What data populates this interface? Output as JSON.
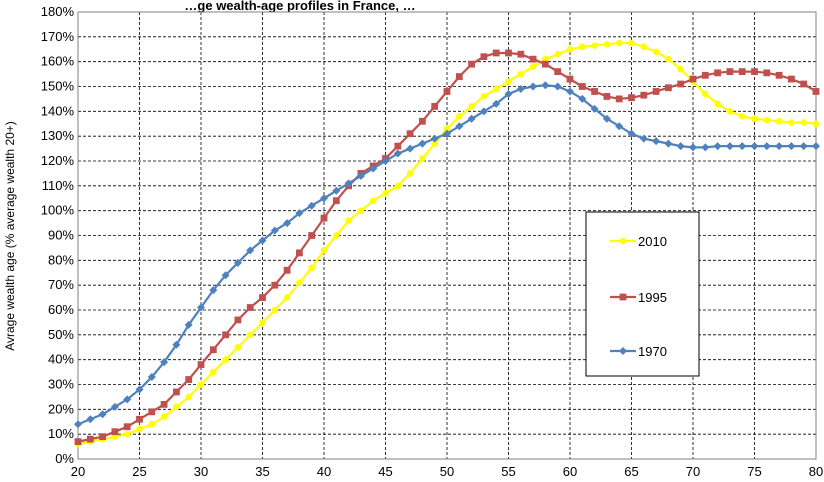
{
  "chart_data": {
    "type": "line",
    "title": "…ge wealth-age profiles in France, …",
    "xlabel": "",
    "ylabel": "Avrage wealth age (% average wealth 20+)",
    "xlim": [
      20,
      80
    ],
    "ylim": [
      0,
      180
    ],
    "x_ticks": [
      "20",
      "25",
      "30",
      "35",
      "40",
      "45",
      "50",
      "55",
      "60",
      "65",
      "70",
      "75",
      "80"
    ],
    "y_ticks": [
      "0%",
      "10%",
      "20%",
      "30%",
      "40%",
      "50%",
      "60%",
      "70%",
      "80%",
      "90%",
      "100%",
      "110%",
      "120%",
      "130%",
      "140%",
      "150%",
      "160%",
      "170%",
      "180%"
    ],
    "grid": true,
    "legend_placement": "right-middle",
    "series": [
      {
        "name": "2010",
        "color": "#ffff00",
        "marker": "circle",
        "x": [
          20,
          21,
          22,
          23,
          24,
          25,
          26,
          27,
          28,
          29,
          30,
          31,
          32,
          33,
          34,
          35,
          36,
          37,
          38,
          39,
          40,
          41,
          42,
          43,
          44,
          45,
          46,
          47,
          48,
          49,
          50,
          51,
          52,
          53,
          54,
          55,
          56,
          57,
          58,
          59,
          60,
          61,
          62,
          63,
          64,
          65,
          66,
          67,
          68,
          69,
          70,
          71,
          72,
          73,
          74,
          75,
          76,
          77,
          78,
          79,
          80
        ],
        "values": [
          6,
          7,
          8,
          9,
          10,
          12,
          14,
          17,
          21,
          25,
          30,
          35,
          40,
          45,
          50,
          55,
          60,
          65,
          71,
          77,
          84,
          90,
          96,
          100,
          104,
          107,
          110,
          115,
          121,
          127,
          133,
          138,
          142,
          146,
          149,
          152,
          155,
          158,
          161,
          163,
          165,
          166,
          166.5,
          167,
          167.5,
          167.5,
          166,
          164,
          161,
          157,
          152,
          147,
          143,
          140,
          138,
          137,
          136.5,
          136,
          135.5,
          135.5,
          135
        ]
      },
      {
        "name": "1995",
        "color": "#c0504d",
        "marker": "square",
        "x": [
          20,
          21,
          22,
          23,
          24,
          25,
          26,
          27,
          28,
          29,
          30,
          31,
          32,
          33,
          34,
          35,
          36,
          37,
          38,
          39,
          40,
          41,
          42,
          43,
          44,
          45,
          46,
          47,
          48,
          49,
          50,
          51,
          52,
          53,
          54,
          55,
          56,
          57,
          58,
          59,
          60,
          61,
          62,
          63,
          64,
          65,
          66,
          67,
          68,
          69,
          70,
          71,
          72,
          73,
          74,
          75,
          76,
          77,
          78,
          79,
          80
        ],
        "values": [
          7,
          8,
          9,
          11,
          13,
          16,
          19,
          22,
          27,
          32,
          38,
          44,
          50,
          56,
          61,
          65,
          70,
          76,
          83,
          90,
          97,
          104,
          110,
          115,
          118,
          121,
          126,
          131,
          136,
          142,
          148,
          154,
          159,
          162,
          163.5,
          163.5,
          163,
          161,
          159,
          156,
          153,
          150,
          148,
          146,
          145,
          145.5,
          146.5,
          148,
          149.5,
          151,
          153,
          154.5,
          155.5,
          156,
          156,
          156,
          155.5,
          154.5,
          153,
          151,
          148
        ]
      },
      {
        "name": "1970",
        "color": "#4f81bd",
        "marker": "diamond",
        "x": [
          20,
          21,
          22,
          23,
          24,
          25,
          26,
          27,
          28,
          29,
          30,
          31,
          32,
          33,
          34,
          35,
          36,
          37,
          38,
          39,
          40,
          41,
          42,
          43,
          44,
          45,
          46,
          47,
          48,
          49,
          50,
          51,
          52,
          53,
          54,
          55,
          56,
          57,
          58,
          59,
          60,
          61,
          62,
          63,
          64,
          65,
          66,
          67,
          68,
          69,
          70,
          71,
          72,
          73,
          74,
          75,
          76,
          77,
          78,
          79,
          80
        ],
        "values": [
          14,
          16,
          18,
          21,
          24,
          28,
          33,
          39,
          46,
          54,
          61,
          68,
          74,
          79,
          84,
          88,
          92,
          95,
          99,
          102,
          105,
          108,
          111,
          114,
          117,
          120,
          123,
          125,
          127,
          129,
          131,
          134,
          137,
          140,
          143,
          147,
          149,
          150,
          150.5,
          150,
          148,
          145,
          141,
          137,
          134,
          131,
          129,
          128,
          127,
          126,
          125.5,
          125.5,
          126,
          126,
          126,
          126,
          126,
          126,
          126,
          126,
          126
        ]
      }
    ]
  }
}
